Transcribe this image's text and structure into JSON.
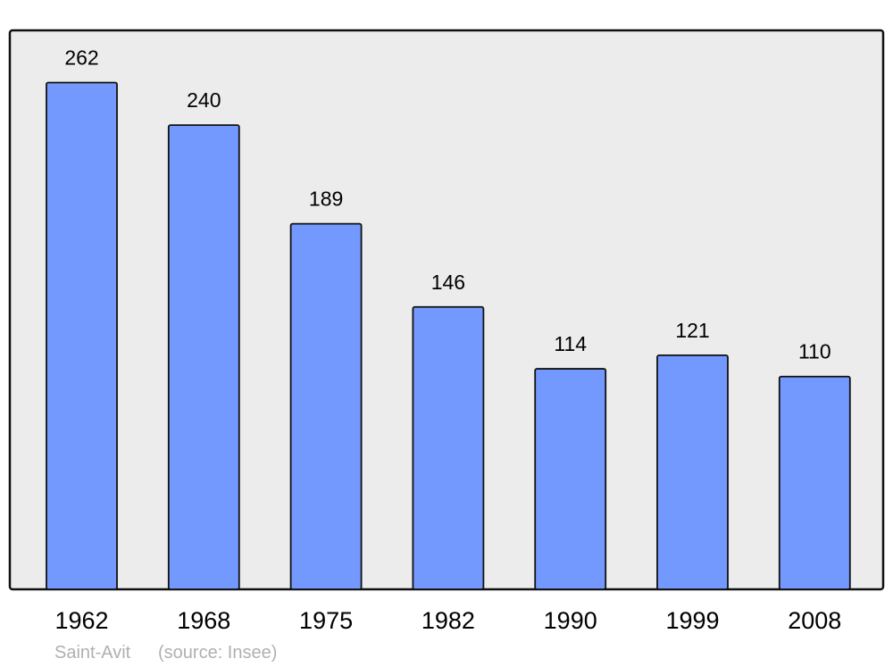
{
  "chart_data": {
    "type": "bar",
    "categories": [
      "1962",
      "1968",
      "1975",
      "1982",
      "1990",
      "1999",
      "2008"
    ],
    "values": [
      262,
      240,
      189,
      146,
      114,
      121,
      110
    ],
    "title": "",
    "xlabel": "",
    "ylabel": "",
    "ylim": [
      0,
      289
    ],
    "grid": false,
    "data_labels": true,
    "bar_color": "#7399ff",
    "background_color": "#ececec"
  },
  "footer": {
    "place": "Saint-Avit",
    "source": "(source: Insee)"
  }
}
